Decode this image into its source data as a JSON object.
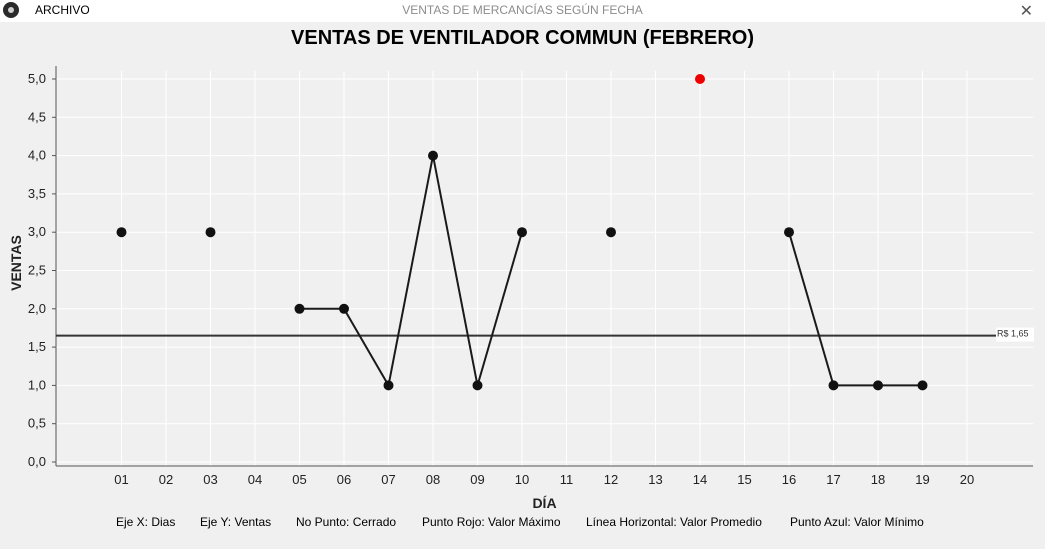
{
  "window": {
    "menu_label": "ARCHIVO",
    "title": "VENTAS DE MERCANCÍAS SEGÚN FECHA",
    "close_glyph": "✕",
    "app_icon": "app-logo-icon"
  },
  "chart_data": {
    "type": "line",
    "title": "VENTAS DE VENTILADOR COMMUN (FEBRERO)",
    "xlabel": "DÍA",
    "ylabel": "VENTAS",
    "ylim": [
      0,
      5
    ],
    "yticks": [
      "0,0",
      "0,5",
      "1,0",
      "1,5",
      "2,0",
      "2,5",
      "3,0",
      "3,5",
      "4,0",
      "4,5",
      "5,0"
    ],
    "categories": [
      "01",
      "02",
      "03",
      "04",
      "05",
      "06",
      "07",
      "08",
      "09",
      "10",
      "11",
      "12",
      "13",
      "14",
      "15",
      "16",
      "17",
      "18",
      "19",
      "20"
    ],
    "points": [
      {
        "x": "01",
        "y": 3
      },
      {
        "x": "03",
        "y": 3
      },
      {
        "x": "05",
        "y": 2
      },
      {
        "x": "06",
        "y": 2
      },
      {
        "x": "07",
        "y": 1
      },
      {
        "x": "08",
        "y": 4
      },
      {
        "x": "09",
        "y": 1
      },
      {
        "x": "10",
        "y": 3
      },
      {
        "x": "12",
        "y": 3
      },
      {
        "x": "14",
        "y": 5
      },
      {
        "x": "16",
        "y": 3
      },
      {
        "x": "17",
        "y": 1
      },
      {
        "x": "18",
        "y": 1
      },
      {
        "x": "19",
        "y": 1
      }
    ],
    "segments": [
      [
        "05",
        "06",
        "07",
        "08",
        "09",
        "10"
      ],
      [
        "16",
        "17",
        "18",
        "19"
      ]
    ],
    "max_point": {
      "x": "14",
      "y": 5
    },
    "average": {
      "value": 1.65,
      "label": "R$ 1,65"
    },
    "grid": true,
    "colors": {
      "line": "#1a1a1a",
      "point": "#111111",
      "max_point": "#ee0000",
      "average_line": "#333333",
      "grid": "#ffffff",
      "axis": "#555555"
    }
  },
  "legend": {
    "x_axis": "Eje X: Dias",
    "y_axis": "Eje Y: Ventas",
    "no_point": "No Punto: Cerrado",
    "red_point": "Punto Rojo: Valor Máximo",
    "horizontal_line": "Línea Horizontal: Valor Promedio",
    "blue_point": "Punto Azul: Valor Mínimo"
  }
}
